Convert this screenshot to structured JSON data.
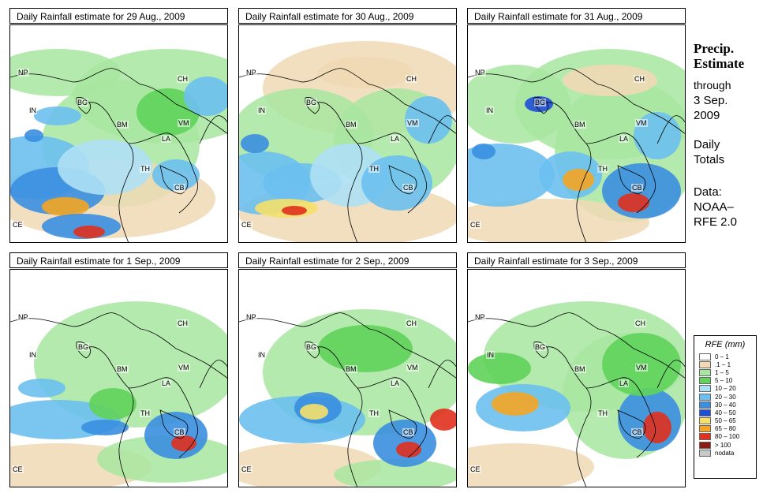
{
  "panels": [
    {
      "title": "Daily Rainfall estimate for  29 Aug., 2009"
    },
    {
      "title": "Daily Rainfall estimate for  30 Aug., 2009"
    },
    {
      "title": "Daily Rainfall estimate for  31 Aug., 2009"
    },
    {
      "title": "Daily Rainfall estimate for  1 Sep., 2009"
    },
    {
      "title": "Daily Rainfall estimate for  2 Sep., 2009"
    },
    {
      "title": "Daily Rainfall estimate for  3 Sep., 2009"
    }
  ],
  "countries": {
    "np": "NP",
    "ch": "CH",
    "in": "IN",
    "bg": "BG",
    "bm": "BM",
    "vm": "VM",
    "la": "LA",
    "th": "TH",
    "cb": "CB",
    "ce": "CE"
  },
  "sidebar": {
    "title_line1": "Precip.",
    "title_line2": "Estimate",
    "through": "through",
    "date_line1": "3 Sep.",
    "date_line2": "2009",
    "daily_line1": "Daily",
    "daily_line2": "Totals",
    "data_line1": "Data:",
    "data_line2": "NOAA–",
    "data_line3": "RFE 2.0"
  },
  "legend": {
    "title": "RFE (mm)",
    "items": [
      {
        "label": "0 – 1",
        "color": "#ffffff"
      },
      {
        "label": ".1 – 1",
        "color": "#f0d9b5"
      },
      {
        "label": "1 – 5",
        "color": "#a8e6a0"
      },
      {
        "label": "5 – 10",
        "color": "#5fd35a"
      },
      {
        "label": "10 – 20",
        "color": "#aee0f5"
      },
      {
        "label": "20 – 30",
        "color": "#6cc0f0"
      },
      {
        "label": "30 – 40",
        "color": "#3a8fe0"
      },
      {
        "label": "40 – 50",
        "color": "#1f4fd6"
      },
      {
        "label": "50 – 65",
        "color": "#f5e06a"
      },
      {
        "label": "65 – 80",
        "color": "#f4a524"
      },
      {
        "label": "80 – 100",
        "color": "#e0301e"
      },
      {
        "label": "> 100",
        "color": "#8b1a14"
      },
      {
        "label": "nodata",
        "color": "#c8c8c8"
      }
    ]
  }
}
